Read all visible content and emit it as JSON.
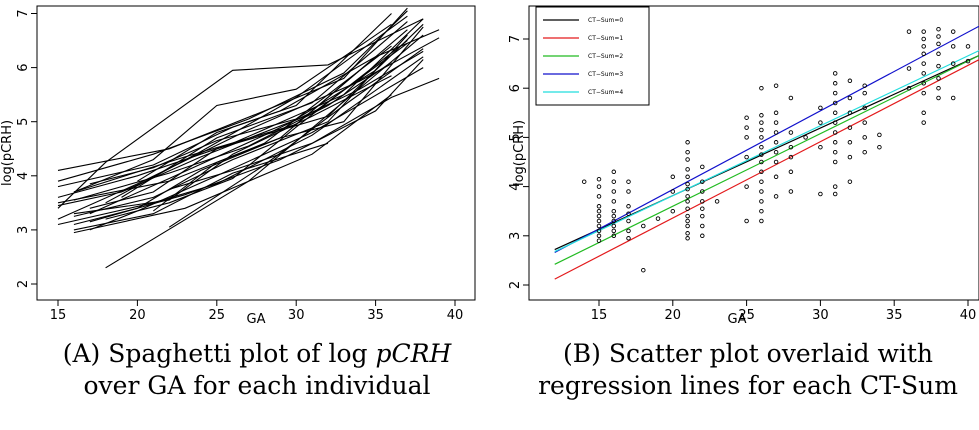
{
  "chart_data": [
    {
      "type": "line",
      "title": "",
      "xlabel": "GA",
      "ylabel": "log(pCRH)",
      "xlim": [
        15,
        40
      ],
      "ylim": [
        2,
        7
      ],
      "xticks": [
        "15",
        "20",
        "25",
        "30",
        "35",
        "40"
      ],
      "yticks": [
        "2",
        "3",
        "4",
        "5",
        "6",
        "7"
      ],
      "grid": false,
      "description_of_series": "one line per individual (spaghetti plot)",
      "series": [
        {
          "x": [
            16,
            21,
            26,
            32,
            37
          ],
          "y": [
            3.25,
            3.6,
            4.3,
            5.0,
            6.6
          ]
        },
        {
          "x": [
            15,
            22,
            28,
            36
          ],
          "y": [
            3.5,
            3.9,
            4.6,
            6.4
          ]
        },
        {
          "x": [
            17,
            20,
            25,
            31,
            38
          ],
          "y": [
            3.0,
            3.35,
            4.0,
            4.8,
            6.0
          ]
        },
        {
          "x": [
            18,
            27,
            38
          ],
          "y": [
            2.3,
            3.9,
            6.6
          ]
        },
        {
          "x": [
            15,
            21,
            26,
            30,
            36
          ],
          "y": [
            3.8,
            4.2,
            4.9,
            5.3,
            7.0
          ]
        },
        {
          "x": [
            16,
            20,
            24,
            29,
            35
          ],
          "y": [
            3.1,
            3.4,
            4.1,
            4.7,
            6.2
          ]
        },
        {
          "x": [
            15,
            22,
            28,
            33,
            37
          ],
          "y": [
            4.1,
            4.5,
            5.2,
            5.8,
            7.1
          ]
        },
        {
          "x": [
            17,
            21,
            25,
            32,
            38
          ],
          "y": [
            3.4,
            3.7,
            4.5,
            5.1,
            6.8
          ]
        },
        {
          "x": [
            16,
            23,
            27,
            31,
            36
          ],
          "y": [
            2.95,
            3.4,
            3.9,
            4.4,
            5.5
          ]
        },
        {
          "x": [
            15,
            20,
            26,
            33,
            38
          ],
          "y": [
            3.6,
            4.0,
            4.6,
            5.5,
            6.9
          ]
        },
        {
          "x": [
            18,
            22,
            26,
            30,
            37
          ],
          "y": [
            3.2,
            3.5,
            3.95,
            4.9,
            6.5
          ]
        },
        {
          "x": [
            16,
            21,
            25,
            30,
            36
          ],
          "y": [
            3.7,
            4.3,
            5.3,
            5.6,
            6.8
          ]
        },
        {
          "x": [
            17,
            22,
            28,
            34,
            38
          ],
          "y": [
            3.3,
            3.95,
            4.75,
            5.6,
            6.3
          ]
        },
        {
          "x": [
            15,
            19,
            24,
            31,
            37
          ],
          "y": [
            3.45,
            3.7,
            4.35,
            5.15,
            6.45
          ]
        },
        {
          "x": [
            16,
            22,
            27,
            32,
            36
          ],
          "y": [
            3.55,
            4.05,
            4.55,
            5.3,
            6.1
          ]
        },
        {
          "x": [
            17,
            23,
            29,
            35,
            38
          ],
          "y": [
            3.15,
            3.65,
            4.3,
            5.2,
            6.15
          ]
        },
        {
          "x": [
            20,
            25,
            29,
            35,
            39
          ],
          "y": [
            3.9,
            4.8,
            5.2,
            6.2,
            6.7
          ]
        },
        {
          "x": [
            22,
            26,
            31,
            36,
            39
          ],
          "y": [
            3.75,
            4.1,
            4.6,
            5.45,
            5.8
          ]
        },
        {
          "x": [
            21,
            25,
            29,
            33,
            38
          ],
          "y": [
            3.35,
            4.25,
            4.7,
            5.0,
            6.75
          ]
        },
        {
          "x": [
            15,
            21,
            27,
            33,
            37
          ],
          "y": [
            3.9,
            4.4,
            5.05,
            5.9,
            7.05
          ]
        },
        {
          "x": [
            16,
            21,
            26,
            32
          ],
          "y": [
            3.0,
            3.3,
            4.05,
            4.6
          ]
        },
        {
          "x": [
            19,
            25,
            31,
            37
          ],
          "y": [
            3.6,
            4.7,
            5.35,
            6.85
          ]
        },
        {
          "x": [
            15,
            18,
            26,
            32,
            38
          ],
          "y": [
            3.4,
            4.25,
            5.95,
            6.05,
            6.9
          ]
        },
        {
          "x": [
            16,
            22,
            26,
            31,
            36
          ],
          "y": [
            3.3,
            3.55,
            4.4,
            5.1,
            5.85
          ]
        },
        {
          "x": [
            17,
            21,
            25,
            30,
            35
          ],
          "y": [
            3.85,
            4.15,
            4.65,
            5.05,
            5.95
          ]
        },
        {
          "x": [
            22,
            28,
            33,
            38
          ],
          "y": [
            3.05,
            4.2,
            5.3,
            6.35
          ]
        },
        {
          "x": [
            15,
            20,
            27,
            34,
            39
          ],
          "y": [
            3.2,
            3.85,
            4.85,
            5.75,
            6.55
          ]
        },
        {
          "x": [
            16,
            23,
            30,
            37
          ],
          "y": [
            3.7,
            4.35,
            4.95,
            6.7
          ]
        },
        {
          "x": [
            18,
            24,
            30,
            37
          ],
          "y": [
            3.5,
            4.45,
            5.45,
            6.95
          ]
        },
        {
          "x": [
            15,
            21,
            25,
            31,
            38
          ],
          "y": [
            3.1,
            3.5,
            3.85,
            4.75,
            6.2
          ]
        }
      ]
    },
    {
      "type": "scatter",
      "title": "",
      "xlabel": "GA",
      "ylabel": "log(pCRH)",
      "xlim": [
        12,
        41
      ],
      "ylim": [
        1.9,
        7.4
      ],
      "xticks": [
        "15",
        "20",
        "25",
        "30",
        "35",
        "40"
      ],
      "yticks": [
        "2",
        "3",
        "4",
        "5",
        "6",
        "7"
      ],
      "grid": false,
      "legend_position": "top-left",
      "legend": [
        {
          "name": "CT−Sum=0",
          "color": "#000000"
        },
        {
          "name": "CT−Sum=1",
          "color": "#e31a1c"
        },
        {
          "name": "CT−Sum=2",
          "color": "#22bb22"
        },
        {
          "name": "CT−Sum=3",
          "color": "#1111cc"
        },
        {
          "name": "CT−Sum=4",
          "color": "#22dddd"
        }
      ],
      "regression_lines": [
        {
          "name": "CT−Sum=0",
          "color": "#000000",
          "x": [
            12,
            41
          ],
          "y": [
            2.72,
            6.7
          ]
        },
        {
          "name": "CT−Sum=1",
          "color": "#e31a1c",
          "x": [
            12,
            41
          ],
          "y": [
            2.12,
            6.62
          ]
        },
        {
          "name": "CT−Sum=2",
          "color": "#22bb22",
          "x": [
            12,
            41
          ],
          "y": [
            2.42,
            6.7
          ]
        },
        {
          "name": "CT−Sum=3",
          "color": "#1111cc",
          "x": [
            12,
            41
          ],
          "y": [
            2.66,
            7.3
          ]
        },
        {
          "name": "CT−Sum=4",
          "color": "#22dddd",
          "x": [
            12,
            41
          ],
          "y": [
            2.68,
            6.8
          ]
        }
      ],
      "points": [
        {
          "x": 14,
          "y": 4.1
        },
        {
          "x": 15,
          "y": 2.9
        },
        {
          "x": 15,
          "y": 3.0
        },
        {
          "x": 15,
          "y": 3.1
        },
        {
          "x": 15,
          "y": 3.2
        },
        {
          "x": 15,
          "y": 3.3
        },
        {
          "x": 15,
          "y": 3.4
        },
        {
          "x": 15,
          "y": 3.5
        },
        {
          "x": 15,
          "y": 3.6
        },
        {
          "x": 15,
          "y": 3.8
        },
        {
          "x": 15,
          "y": 4.0
        },
        {
          "x": 15,
          "y": 4.15
        },
        {
          "x": 16,
          "y": 3.0
        },
        {
          "x": 16,
          "y": 3.1
        },
        {
          "x": 16,
          "y": 3.2
        },
        {
          "x": 16,
          "y": 3.3
        },
        {
          "x": 16,
          "y": 3.4
        },
        {
          "x": 16,
          "y": 3.5
        },
        {
          "x": 16,
          "y": 3.7
        },
        {
          "x": 16,
          "y": 3.9
        },
        {
          "x": 16,
          "y": 4.1
        },
        {
          "x": 16,
          "y": 4.3
        },
        {
          "x": 17,
          "y": 2.95
        },
        {
          "x": 17,
          "y": 3.1
        },
        {
          "x": 17,
          "y": 3.3
        },
        {
          "x": 17,
          "y": 3.45
        },
        {
          "x": 17,
          "y": 3.6
        },
        {
          "x": 17,
          "y": 3.9
        },
        {
          "x": 17,
          "y": 4.1
        },
        {
          "x": 18,
          "y": 2.3
        },
        {
          "x": 18,
          "y": 3.2
        },
        {
          "x": 19,
          "y": 3.35
        },
        {
          "x": 20,
          "y": 3.5
        },
        {
          "x": 20,
          "y": 3.9
        },
        {
          "x": 20,
          "y": 4.2
        },
        {
          "x": 21,
          "y": 2.95
        },
        {
          "x": 21,
          "y": 3.05
        },
        {
          "x": 21,
          "y": 3.2
        },
        {
          "x": 21,
          "y": 3.3
        },
        {
          "x": 21,
          "y": 3.4
        },
        {
          "x": 21,
          "y": 3.55
        },
        {
          "x": 21,
          "y": 3.7
        },
        {
          "x": 21,
          "y": 3.8
        },
        {
          "x": 21,
          "y": 3.95
        },
        {
          "x": 21,
          "y": 4.05
        },
        {
          "x": 21,
          "y": 4.2
        },
        {
          "x": 21,
          "y": 4.35
        },
        {
          "x": 21,
          "y": 4.55
        },
        {
          "x": 21,
          "y": 4.7
        },
        {
          "x": 21,
          "y": 4.9
        },
        {
          "x": 22,
          "y": 3.0
        },
        {
          "x": 22,
          "y": 3.2
        },
        {
          "x": 22,
          "y": 3.4
        },
        {
          "x": 22,
          "y": 3.55
        },
        {
          "x": 22,
          "y": 3.7
        },
        {
          "x": 22,
          "y": 3.9
        },
        {
          "x": 22,
          "y": 4.1
        },
        {
          "x": 22,
          "y": 4.4
        },
        {
          "x": 23,
          "y": 3.7
        },
        {
          "x": 25,
          "y": 3.3
        },
        {
          "x": 25,
          "y": 4.0
        },
        {
          "x": 25,
          "y": 4.6
        },
        {
          "x": 25,
          "y": 5.0
        },
        {
          "x": 25,
          "y": 5.2
        },
        {
          "x": 25,
          "y": 5.4
        },
        {
          "x": 26,
          "y": 3.3
        },
        {
          "x": 26,
          "y": 3.5
        },
        {
          "x": 26,
          "y": 3.7
        },
        {
          "x": 26,
          "y": 3.9
        },
        {
          "x": 26,
          "y": 4.1
        },
        {
          "x": 26,
          "y": 4.3
        },
        {
          "x": 26,
          "y": 4.5
        },
        {
          "x": 26,
          "y": 4.65
        },
        {
          "x": 26,
          "y": 4.8
        },
        {
          "x": 26,
          "y": 5.0
        },
        {
          "x": 26,
          "y": 5.15
        },
        {
          "x": 26,
          "y": 5.3
        },
        {
          "x": 26,
          "y": 5.45
        },
        {
          "x": 26,
          "y": 6.0
        },
        {
          "x": 27,
          "y": 3.8
        },
        {
          "x": 27,
          "y": 4.2
        },
        {
          "x": 27,
          "y": 4.5
        },
        {
          "x": 27,
          "y": 4.7
        },
        {
          "x": 27,
          "y": 4.9
        },
        {
          "x": 27,
          "y": 5.1
        },
        {
          "x": 27,
          "y": 5.3
        },
        {
          "x": 27,
          "y": 5.5
        },
        {
          "x": 27,
          "y": 6.05
        },
        {
          "x": 28,
          "y": 3.9
        },
        {
          "x": 28,
          "y": 4.3
        },
        {
          "x": 28,
          "y": 4.6
        },
        {
          "x": 28,
          "y": 4.8
        },
        {
          "x": 28,
          "y": 5.1
        },
        {
          "x": 28,
          "y": 5.8
        },
        {
          "x": 29,
          "y": 5.0
        },
        {
          "x": 30,
          "y": 3.85
        },
        {
          "x": 30,
          "y": 4.8
        },
        {
          "x": 30,
          "y": 5.3
        },
        {
          "x": 30,
          "y": 5.6
        },
        {
          "x": 31,
          "y": 3.85
        },
        {
          "x": 31,
          "y": 4.0
        },
        {
          "x": 31,
          "y": 4.5
        },
        {
          "x": 31,
          "y": 4.7
        },
        {
          "x": 31,
          "y": 4.9
        },
        {
          "x": 31,
          "y": 5.1
        },
        {
          "x": 31,
          "y": 5.3
        },
        {
          "x": 31,
          "y": 5.5
        },
        {
          "x": 31,
          "y": 5.7
        },
        {
          "x": 31,
          "y": 5.9
        },
        {
          "x": 31,
          "y": 6.1
        },
        {
          "x": 31,
          "y": 6.3
        },
        {
          "x": 32,
          "y": 4.1
        },
        {
          "x": 32,
          "y": 4.6
        },
        {
          "x": 32,
          "y": 4.9
        },
        {
          "x": 32,
          "y": 5.2
        },
        {
          "x": 32,
          "y": 5.5
        },
        {
          "x": 32,
          "y": 5.8
        },
        {
          "x": 32,
          "y": 6.15
        },
        {
          "x": 33,
          "y": 4.7
        },
        {
          "x": 33,
          "y": 5.0
        },
        {
          "x": 33,
          "y": 5.3
        },
        {
          "x": 33,
          "y": 5.6
        },
        {
          "x": 33,
          "y": 5.9
        },
        {
          "x": 33,
          "y": 6.05
        },
        {
          "x": 34,
          "y": 4.8
        },
        {
          "x": 34,
          "y": 5.05
        },
        {
          "x": 36,
          "y": 6.0
        },
        {
          "x": 36,
          "y": 6.4
        },
        {
          "x": 36,
          "y": 7.15
        },
        {
          "x": 37,
          "y": 5.3
        },
        {
          "x": 37,
          "y": 5.5
        },
        {
          "x": 37,
          "y": 5.9
        },
        {
          "x": 37,
          "y": 6.1
        },
        {
          "x": 37,
          "y": 6.3
        },
        {
          "x": 37,
          "y": 6.5
        },
        {
          "x": 37,
          "y": 6.7
        },
        {
          "x": 37,
          "y": 6.85
        },
        {
          "x": 37,
          "y": 7.0
        },
        {
          "x": 37,
          "y": 7.15
        },
        {
          "x": 38,
          "y": 5.8
        },
        {
          "x": 38,
          "y": 6.0
        },
        {
          "x": 38,
          "y": 6.2
        },
        {
          "x": 38,
          "y": 6.45
        },
        {
          "x": 38,
          "y": 6.7
        },
        {
          "x": 38,
          "y": 6.9
        },
        {
          "x": 38,
          "y": 7.05
        },
        {
          "x": 38,
          "y": 7.2
        },
        {
          "x": 39,
          "y": 5.8
        },
        {
          "x": 39,
          "y": 6.5
        },
        {
          "x": 39,
          "y": 6.85
        },
        {
          "x": 39,
          "y": 7.15
        },
        {
          "x": 40,
          "y": 6.55
        },
        {
          "x": 40,
          "y": 6.85
        }
      ]
    }
  ],
  "captions": {
    "a_line1_prefix": "(A) Spaghetti plot of",
    "a_line1_fn": "log",
    "a_line1_var": "pCRH",
    "a_line2": "over GA for each individual",
    "b_line1": "(B) Scatter plot overlaid with",
    "b_line2": "regression lines for each CT-Sum"
  }
}
